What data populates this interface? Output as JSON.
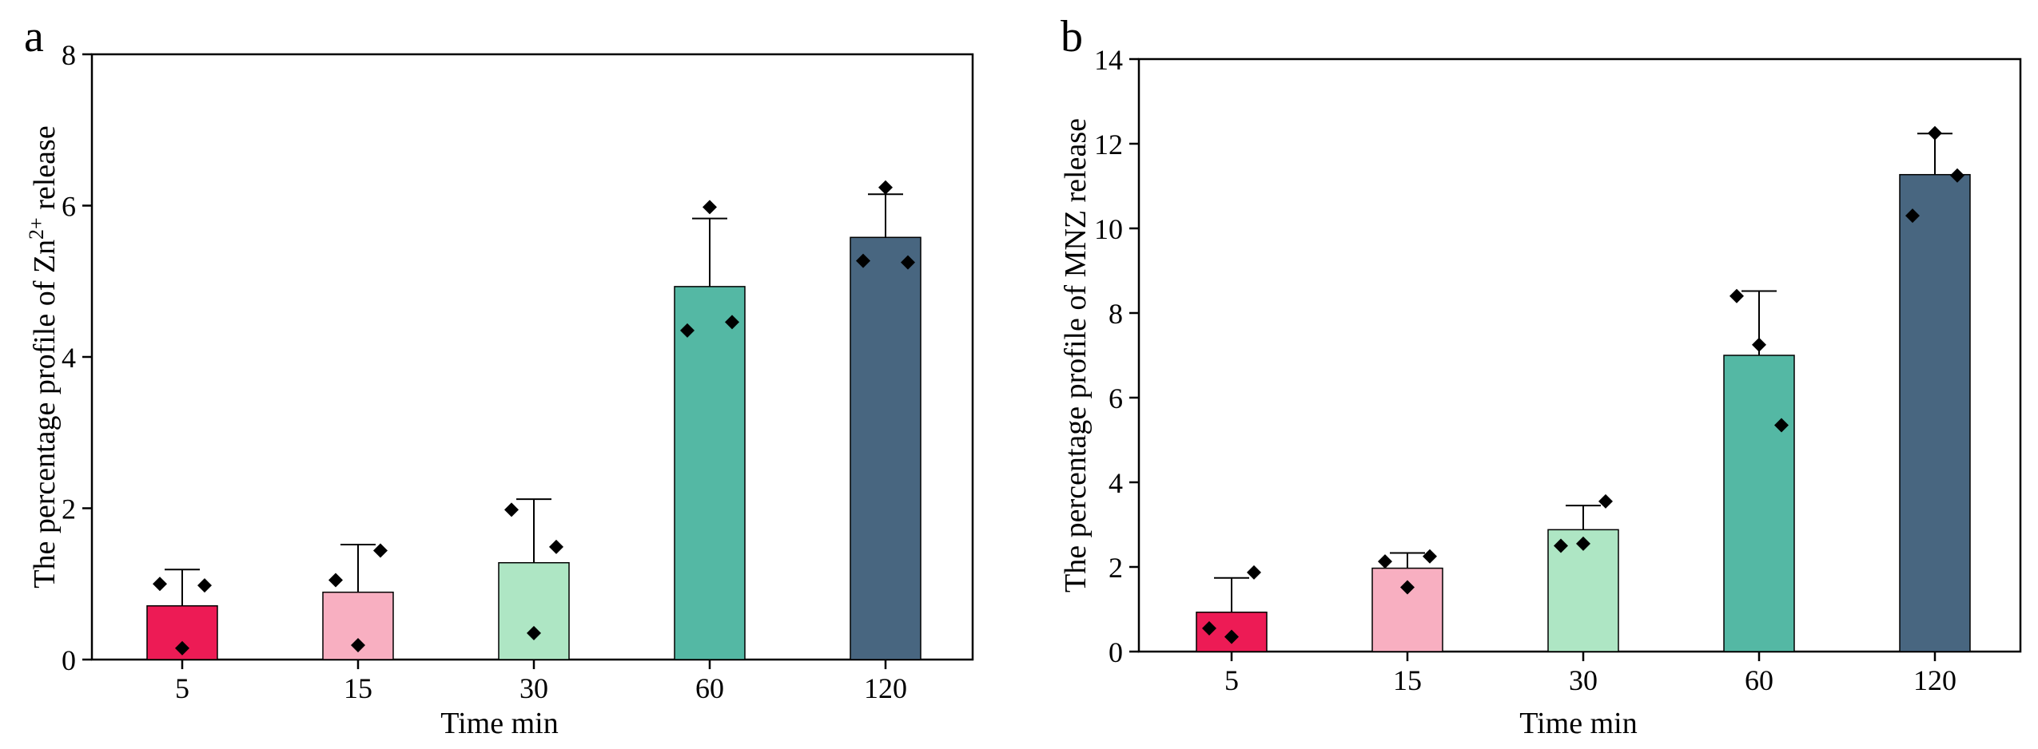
{
  "chart_data": [
    {
      "panel_label": "a",
      "type": "bar",
      "categories": [
        "5",
        "15",
        "30",
        "60",
        "120"
      ],
      "values": [
        0.71,
        0.89,
        1.28,
        4.93,
        5.58
      ],
      "errors": [
        0.48,
        0.63,
        0.84,
        0.9,
        0.57
      ],
      "points": [
        [
          1.0,
          0.15,
          0.98
        ],
        [
          1.05,
          0.19,
          1.44
        ],
        [
          1.98,
          0.35,
          1.49
        ],
        [
          4.35,
          5.98,
          4.46
        ],
        [
          5.27,
          6.24,
          5.25
        ]
      ],
      "colors": [
        "#ED1B55",
        "#F8AFC1",
        "#AEE6C4",
        "#54B8A4",
        "#486680"
      ],
      "title": "",
      "xlabel": "Time min",
      "ylabel_prefix": "The percentage profile of Zn",
      "ylabel_sup": "2+",
      "ylabel_suffix": " release",
      "ylim": [
        0,
        8
      ],
      "yticks": [
        "0",
        "2",
        "4",
        "6",
        "8"
      ],
      "grid": false,
      "legend": "none"
    },
    {
      "panel_label": "b",
      "type": "bar",
      "categories": [
        "5",
        "15",
        "30",
        "60",
        "120"
      ],
      "values": [
        0.93,
        1.97,
        2.88,
        7.0,
        11.27
      ],
      "errors": [
        0.81,
        0.36,
        0.57,
        1.52,
        0.97
      ],
      "points": [
        [
          0.55,
          0.35,
          1.87
        ],
        [
          2.13,
          1.52,
          2.25
        ],
        [
          2.5,
          2.55,
          3.55
        ],
        [
          8.4,
          7.25,
          5.35
        ],
        [
          10.3,
          12.25,
          11.25
        ]
      ],
      "colors": [
        "#ED1B55",
        "#F8AFC1",
        "#AEE6C4",
        "#54B8A4",
        "#486680"
      ],
      "title": "",
      "xlabel": "Time min",
      "ylabel": "The percentage profile of MNZ release",
      "ylim": [
        0,
        14
      ],
      "yticks": [
        "0",
        "2",
        "4",
        "6",
        "8",
        "10",
        "12",
        "14"
      ],
      "grid": false,
      "legend": "none"
    }
  ]
}
